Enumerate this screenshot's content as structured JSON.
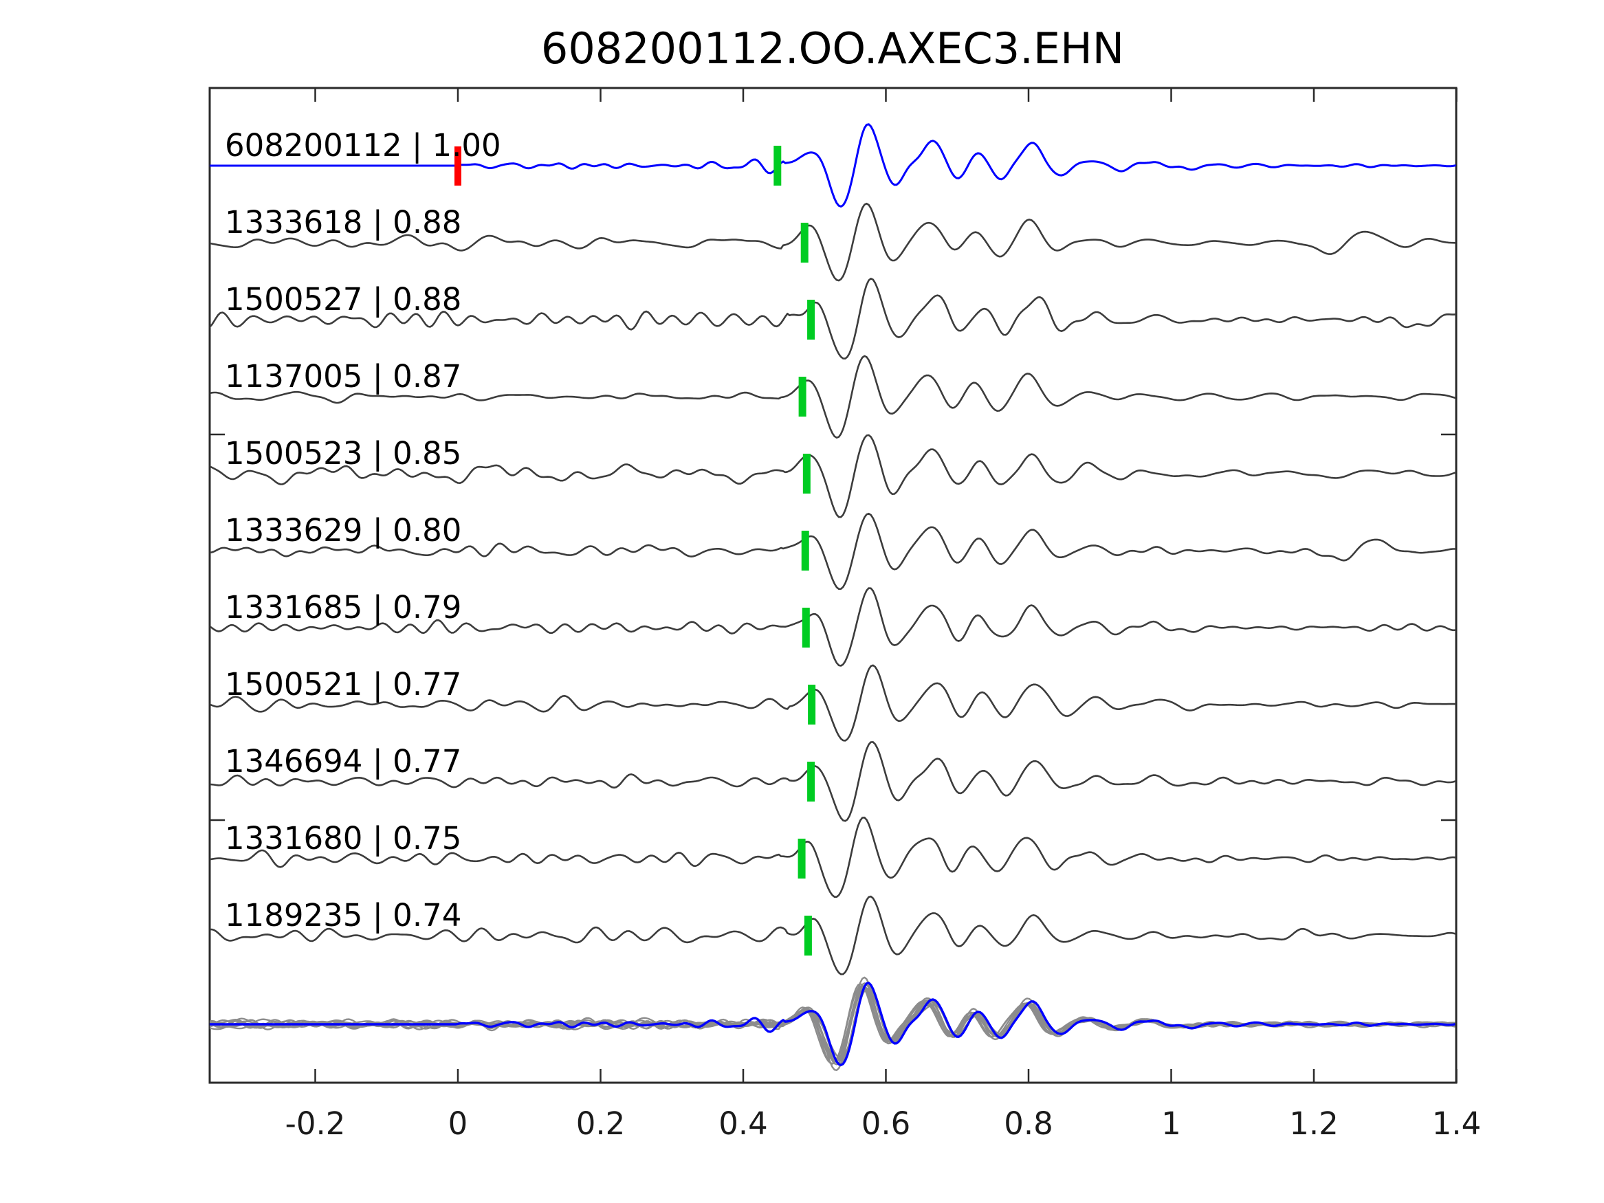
{
  "chart_data": {
    "type": "line",
    "title": "608200112.OO.AXEC3.EHN",
    "xlabel": "",
    "ylabel": "",
    "xlim": [
      -0.348,
      1.4
    ],
    "xticks": [
      -0.2,
      0,
      0.2,
      0.4,
      0.6,
      0.8,
      1,
      1.2,
      1.4
    ],
    "xtick_labels": [
      "-0.2",
      "0",
      "0.2",
      "0.4",
      "0.6",
      "0.8",
      "1",
      "1.2",
      "1.4"
    ],
    "grid": false,
    "legend": null,
    "colors": {
      "background": "#ffffff",
      "axis": "#2a2a2a",
      "template_trace": "#0000ff",
      "gray_trace": "#3c3c3c",
      "stack_gray": "#8c8c8c",
      "pick_marker": "#00cc22",
      "zero_marker": "#ff0000",
      "text": "#000000"
    },
    "traces": [
      {
        "id": "608200112",
        "label": "608200112 | 1.00",
        "correlation": 1.0,
        "is_template": true,
        "pick_time": 0.448,
        "zero_marker_time": 0.0,
        "packet_time": 0.497,
        "seed": 1,
        "noise_amp": 0.085,
        "packet_amp": 1.0,
        "late_amp": 0,
        "late_time": 0
      },
      {
        "id": "1333618",
        "label": "1333618 | 0.88",
        "correlation": 0.88,
        "is_template": false,
        "pick_time": 0.486,
        "packet_time": 0.495,
        "seed": 2,
        "noise_amp": 0.13,
        "packet_amp": 0.97,
        "late_amp": 0.32,
        "late_time": 1.245
      },
      {
        "id": "1500527",
        "label": "1500527 | 0.88",
        "correlation": 0.88,
        "is_template": false,
        "pick_time": 0.495,
        "packet_time": 0.504,
        "seed": 3,
        "noise_amp": 0.14,
        "packet_amp": 1.0,
        "late_amp": 0.22,
        "late_time": 1.375
      },
      {
        "id": "1137005",
        "label": "1137005 | 0.87",
        "correlation": 0.87,
        "is_template": false,
        "pick_time": 0.483,
        "packet_time": 0.492,
        "seed": 4,
        "noise_amp": 0.13,
        "packet_amp": 0.95,
        "late_amp": 0,
        "late_time": 0
      },
      {
        "id": "1500523",
        "label": "1500523 | 0.85",
        "correlation": 0.85,
        "is_template": false,
        "pick_time": 0.489,
        "packet_time": 0.498,
        "seed": 5,
        "noise_amp": 0.17,
        "packet_amp": 0.98,
        "late_amp": 0,
        "late_time": 0
      },
      {
        "id": "1333629",
        "label": "1333629 | 0.80",
        "correlation": 0.8,
        "is_template": false,
        "pick_time": 0.487,
        "packet_time": 0.496,
        "seed": 6,
        "noise_amp": 0.13,
        "packet_amp": 0.94,
        "late_amp": 0.3,
        "late_time": 1.26
      },
      {
        "id": "1331685",
        "label": "1331685 | 0.79",
        "correlation": 0.79,
        "is_template": false,
        "pick_time": 0.488,
        "packet_time": 0.497,
        "seed": 7,
        "noise_amp": 0.12,
        "packet_amp": 0.96,
        "late_amp": 0,
        "late_time": 0
      },
      {
        "id": "1500521",
        "label": "1500521 | 0.77",
        "correlation": 0.77,
        "is_template": false,
        "pick_time": 0.496,
        "packet_time": 0.505,
        "seed": 8,
        "noise_amp": 0.13,
        "packet_amp": 0.97,
        "late_amp": 0,
        "late_time": 0
      },
      {
        "id": "1346694",
        "label": "1346694 | 0.77",
        "correlation": 0.77,
        "is_template": false,
        "pick_time": 0.495,
        "packet_time": 0.504,
        "seed": 9,
        "noise_amp": 0.12,
        "packet_amp": 0.95,
        "late_amp": 0,
        "late_time": 0
      },
      {
        "id": "1331680",
        "label": "1331680 | 0.75",
        "correlation": 0.75,
        "is_template": false,
        "pick_time": 0.482,
        "packet_time": 0.491,
        "seed": 10,
        "noise_amp": 0.13,
        "packet_amp": 0.96,
        "late_amp": 0,
        "late_time": 0
      },
      {
        "id": "1189235",
        "label": "1189235 | 0.74",
        "correlation": 0.74,
        "is_template": false,
        "pick_time": 0.491,
        "packet_time": 0.5,
        "seed": 11,
        "noise_amp": 0.14,
        "packet_amp": 0.98,
        "late_amp": 0.12,
        "late_time": 1.16
      }
    ],
    "packet_shape": {
      "comment": "seismic wavelet lobes: [time offset from packet_time (s), gaussian half-width (s), relative amplitude]",
      "lobes": [
        [
          0.0,
          0.021,
          0.38
        ],
        [
          0.04,
          0.023,
          -0.95
        ],
        [
          0.076,
          0.021,
          1.0
        ],
        [
          0.112,
          0.019,
          -0.45
        ],
        [
          0.168,
          0.023,
          0.52
        ],
        [
          0.2,
          0.016,
          -0.33
        ],
        [
          0.232,
          0.015,
          0.27
        ],
        [
          0.264,
          0.016,
          -0.3
        ],
        [
          0.306,
          0.021,
          0.48
        ],
        [
          0.346,
          0.018,
          -0.22
        ],
        [
          0.39,
          0.018,
          0.13
        ],
        [
          0.43,
          0.018,
          -0.1
        ],
        [
          0.472,
          0.02,
          0.09
        ],
        [
          0.518,
          0.02,
          -0.07
        ]
      ]
    },
    "stack_row": {
      "description": "all aligned traces overlaid in gray with the template trace highlighted in blue",
      "has_pick_marker": false
    }
  }
}
